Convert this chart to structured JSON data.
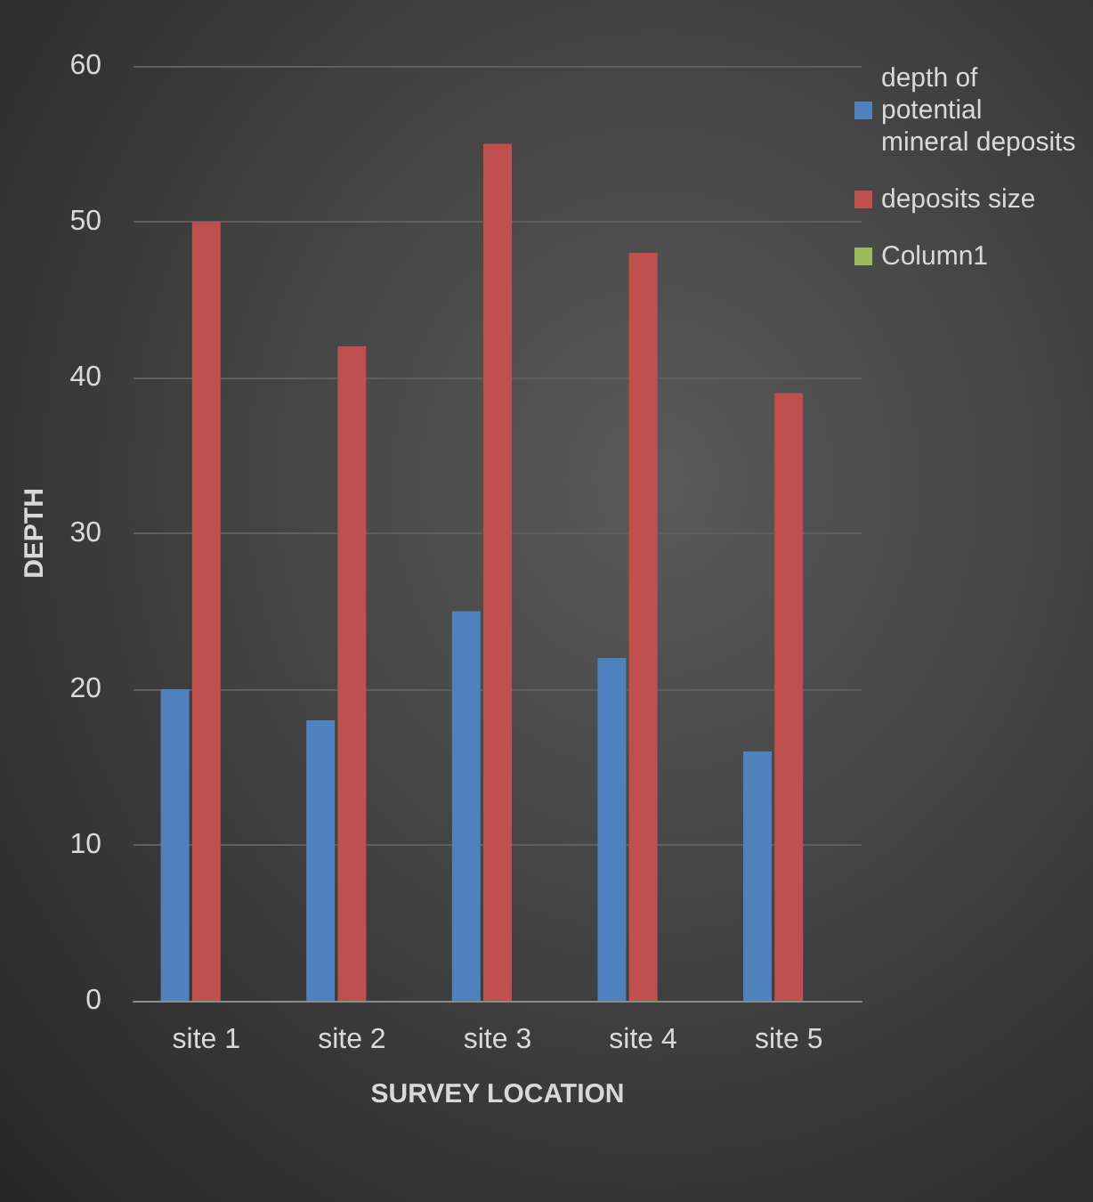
{
  "chart_data": {
    "type": "bar",
    "xlabel": "SURVEY LOCATION",
    "ylabel": "DEPTH",
    "categories": [
      "site 1",
      "site 2",
      "site 3",
      "site 4",
      "site 5"
    ],
    "series": [
      {
        "name": "depth of potential mineral deposits",
        "color": "#4f81bd",
        "values": [
          20,
          18,
          25,
          22,
          16
        ]
      },
      {
        "name": "deposits size",
        "color": "#c0504d",
        "values": [
          50,
          42,
          55,
          48,
          39
        ]
      },
      {
        "name": "Column1",
        "color": "#9bbb59",
        "values": [
          null,
          null,
          null,
          null,
          null
        ]
      }
    ],
    "ylim": [
      0,
      60
    ],
    "yticks": [
      0,
      10,
      20,
      30,
      40,
      50,
      60
    ],
    "grid": "y",
    "legend": "top right"
  }
}
